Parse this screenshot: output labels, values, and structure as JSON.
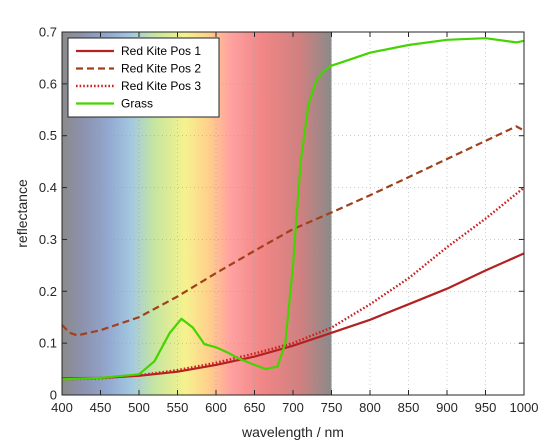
{
  "chart_data": {
    "type": "line",
    "title": "",
    "xlabel": "wavelength / nm",
    "ylabel": "reflectance",
    "xlim": [
      400,
      1000
    ],
    "ylim": [
      0,
      0.7
    ],
    "x_ticks": [
      400,
      450,
      500,
      550,
      600,
      650,
      700,
      750,
      800,
      850,
      900,
      950,
      1000
    ],
    "y_ticks": [
      0,
      0.1,
      0.2,
      0.3,
      0.4,
      0.5,
      0.6,
      0.7
    ],
    "x_tick_labels": [
      "400",
      "450",
      "500",
      "550",
      "600",
      "650",
      "700",
      "750",
      "800",
      "850",
      "900",
      "950",
      "1000"
    ],
    "y_tick_labels": [
      "0",
      "0.1",
      "0.2",
      "0.3",
      "0.4",
      "0.5",
      "0.6",
      "0.7"
    ],
    "grid": true,
    "legend_position": "top-left",
    "background_spectrum": {
      "range": [
        400,
        750
      ],
      "colors": [
        "#8a8a8a",
        "#8d93b2",
        "#92a8d0",
        "#a3c8e0",
        "#c6e6a0",
        "#f6f28e",
        "#ffd08c",
        "#ffa0a0",
        "#f28686",
        "#d08080",
        "#8a8a8a"
      ],
      "stops": [
        400,
        430,
        460,
        490,
        520,
        560,
        590,
        620,
        660,
        710,
        750
      ]
    },
    "series": [
      {
        "name": "Red Kite Pos 1",
        "color": "#b22222",
        "style": "solid",
        "x": [
          400,
          450,
          500,
          550,
          600,
          650,
          700,
          750,
          800,
          850,
          900,
          950,
          1000
        ],
        "y": [
          0.032,
          0.033,
          0.037,
          0.045,
          0.058,
          0.074,
          0.095,
          0.12,
          0.145,
          0.175,
          0.205,
          0.24,
          0.273
        ]
      },
      {
        "name": "Red Kite Pos 2",
        "color": "#a0401c",
        "style": "dashed",
        "x": [
          400,
          410,
          420,
          450,
          500,
          550,
          600,
          650,
          700,
          750,
          800,
          850,
          900,
          950,
          990,
          1000
        ],
        "y": [
          0.135,
          0.12,
          0.115,
          0.125,
          0.15,
          0.19,
          0.235,
          0.278,
          0.32,
          0.352,
          0.385,
          0.42,
          0.455,
          0.49,
          0.518,
          0.51
        ]
      },
      {
        "name": "Red Kite Pos 3",
        "color": "#cc1f1f",
        "style": "dotted",
        "x": [
          400,
          450,
          500,
          550,
          600,
          650,
          700,
          750,
          800,
          850,
          900,
          950,
          1000
        ],
        "y": [
          0.03,
          0.032,
          0.038,
          0.048,
          0.062,
          0.08,
          0.1,
          0.13,
          0.175,
          0.225,
          0.285,
          0.34,
          0.4
        ]
      },
      {
        "name": "Grass",
        "color": "#44d400",
        "style": "solid",
        "x": [
          400,
          450,
          500,
          520,
          540,
          555,
          570,
          585,
          600,
          615,
          630,
          650,
          665,
          680,
          690,
          700,
          710,
          720,
          730,
          740,
          750,
          780,
          800,
          850,
          900,
          950,
          990,
          1000
        ],
        "y": [
          0.03,
          0.033,
          0.04,
          0.065,
          0.12,
          0.147,
          0.13,
          0.098,
          0.092,
          0.082,
          0.07,
          0.058,
          0.05,
          0.055,
          0.1,
          0.25,
          0.45,
          0.56,
          0.605,
          0.625,
          0.635,
          0.65,
          0.66,
          0.675,
          0.685,
          0.688,
          0.68,
          0.683
        ]
      }
    ]
  }
}
